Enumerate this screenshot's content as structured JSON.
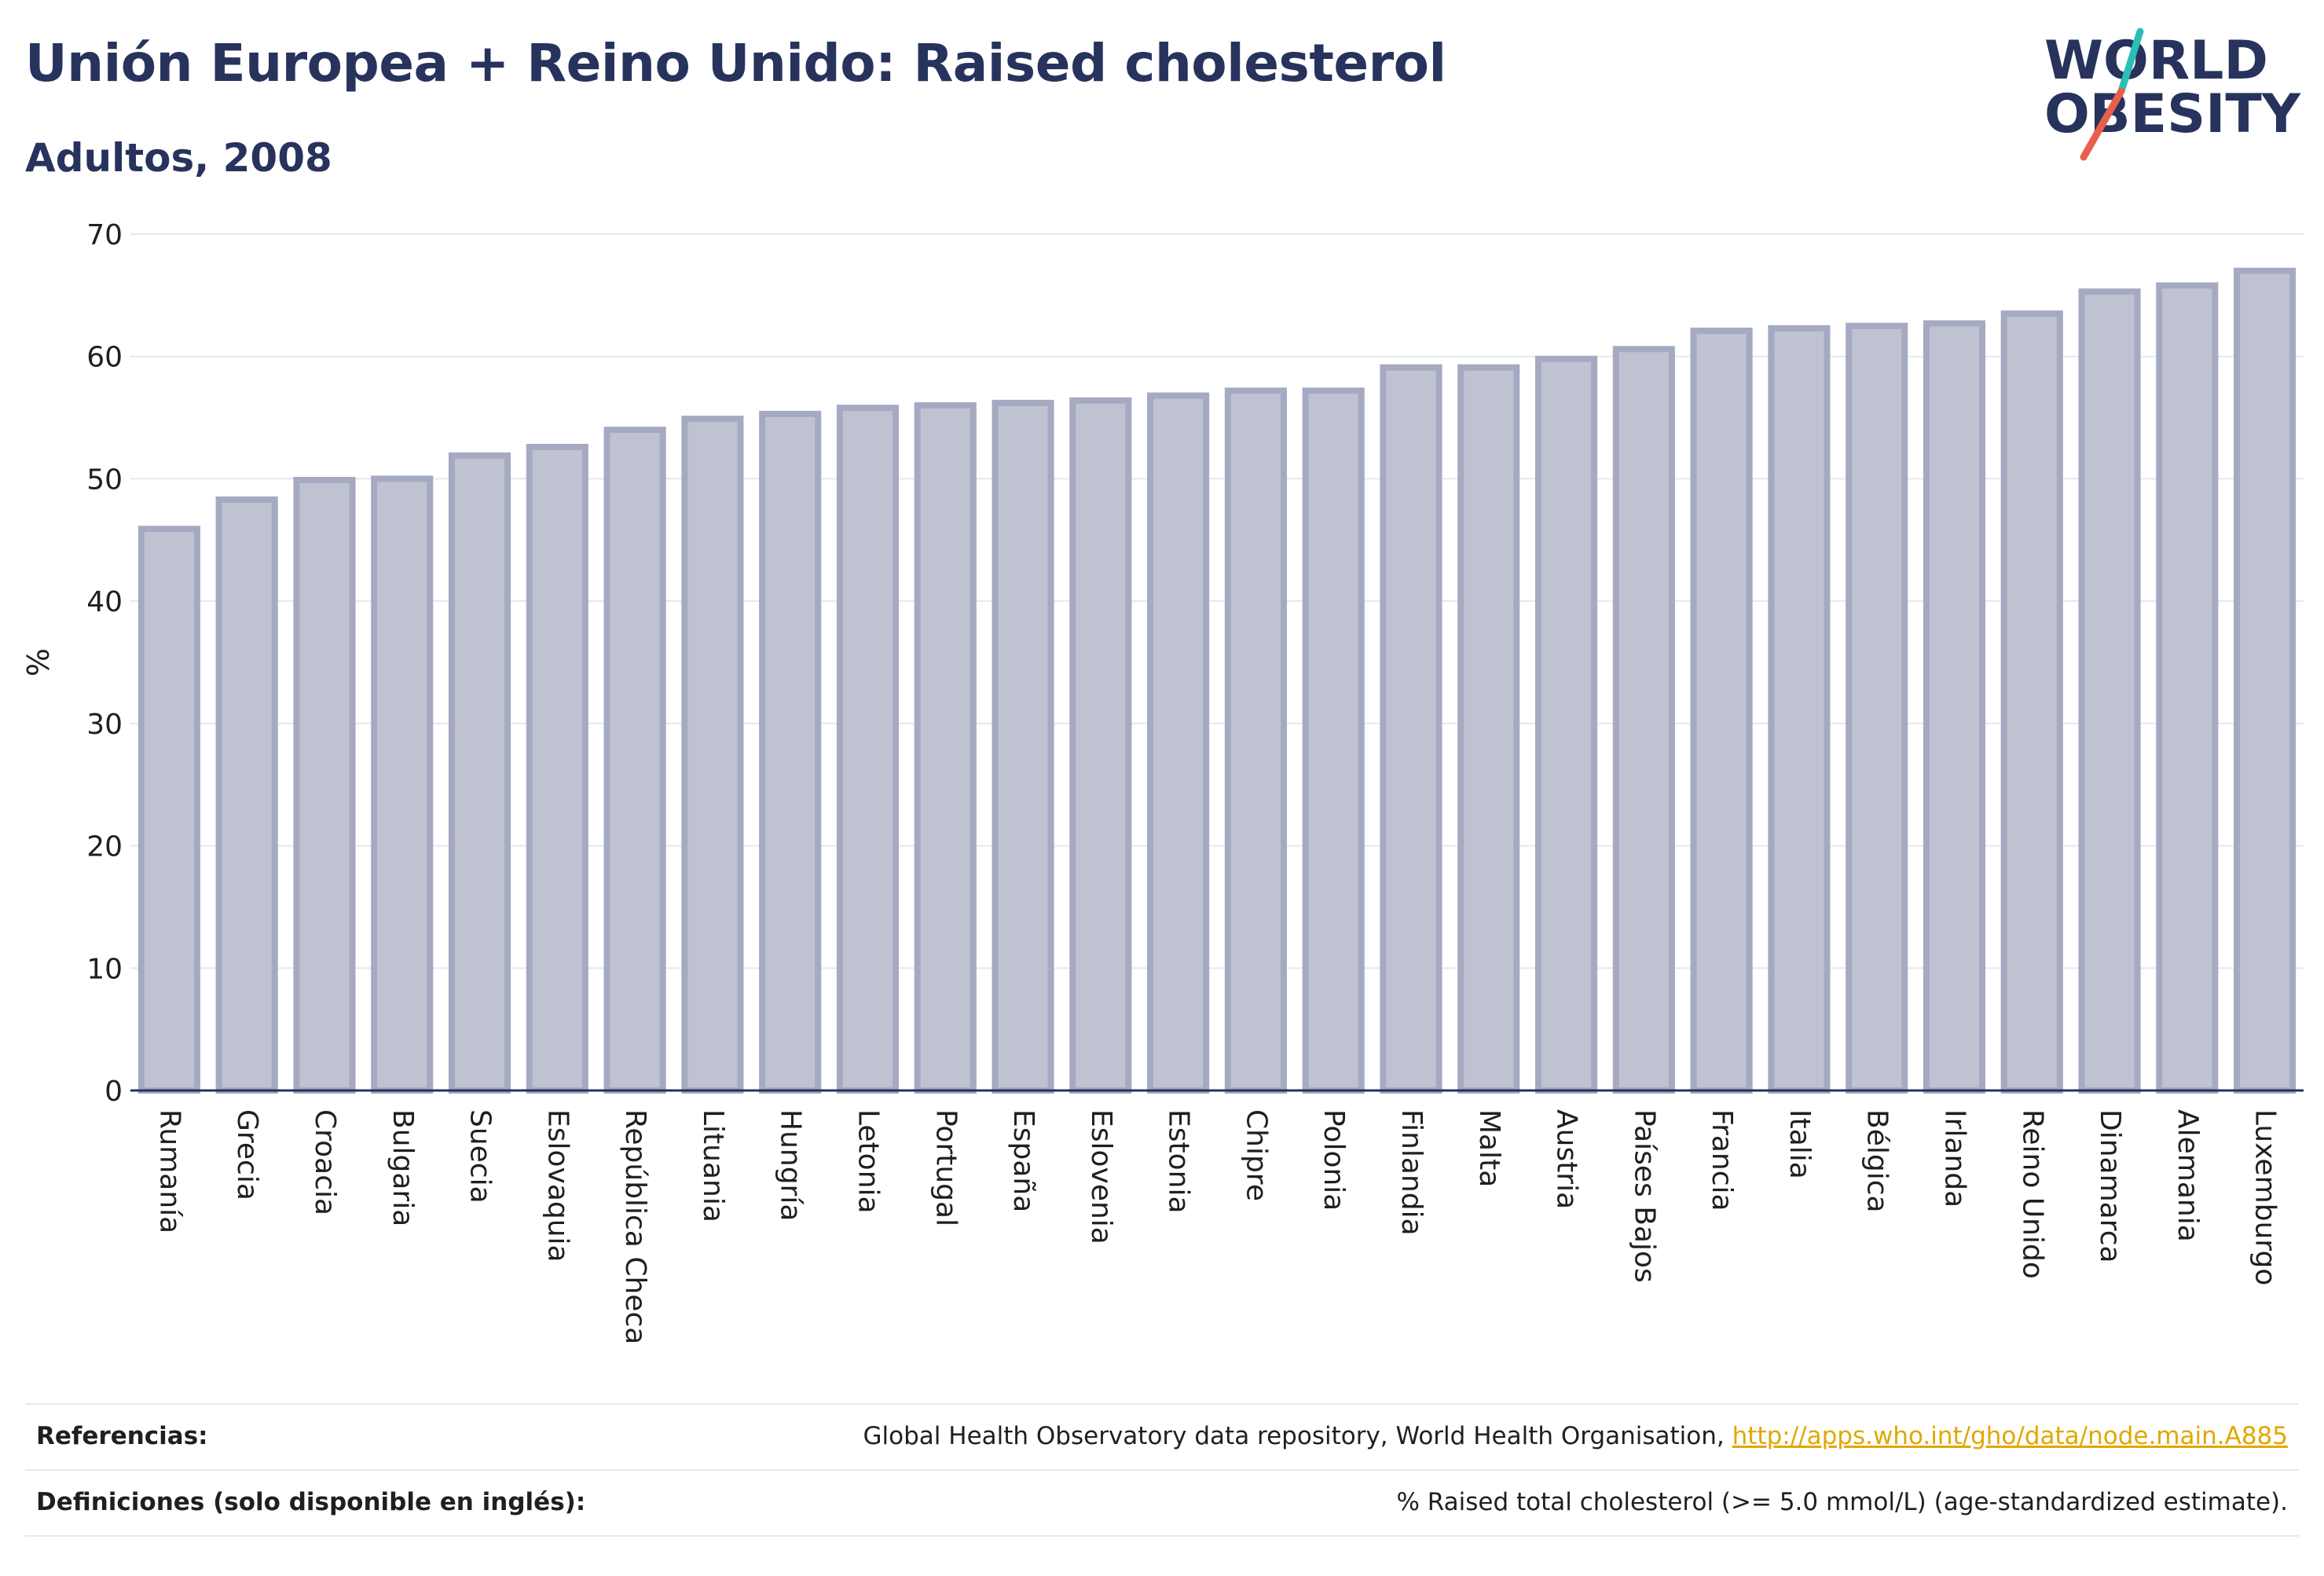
{
  "header": {
    "title": "Unión Europea + Reino Unido: Raised cholesterol",
    "subtitle": "Adultos, 2008"
  },
  "logo": {
    "line1": "WORLD",
    "line2": "OBESITY",
    "colors": {
      "text": "#27335c",
      "slash_top": "#2bbfb3",
      "slash_bottom": "#e8604c"
    }
  },
  "chart_data": {
    "type": "bar",
    "categories": [
      "Rumanía",
      "Grecia",
      "Croacia",
      "Bulgaria",
      "Suecia",
      "Eslovaquia",
      "República Checa",
      "Lituania",
      "Hungría",
      "Letonia",
      "Portugal",
      "España",
      "Eslovenia",
      "Estonia",
      "Chipre",
      "Polonia",
      "Finlandia",
      "Malta",
      "Austria",
      "Países Bajos",
      "Francia",
      "Italia",
      "Bélgica",
      "Irlanda",
      "Reino Unido",
      "Dinamarca",
      "Alemania",
      "Luxemburgo"
    ],
    "values": [
      45.9,
      48.3,
      49.9,
      50.0,
      51.9,
      52.6,
      54.0,
      54.9,
      55.3,
      55.8,
      56.0,
      56.2,
      56.4,
      56.8,
      57.2,
      57.2,
      59.1,
      59.1,
      59.8,
      60.6,
      62.1,
      62.3,
      62.5,
      62.7,
      63.5,
      65.3,
      65.8,
      67.0
    ],
    "ylabel": "%",
    "xlabel": "",
    "ylim": [
      0,
      70
    ],
    "yticks": [
      0,
      10,
      20,
      30,
      40,
      50,
      60,
      70
    ],
    "grid": true,
    "colors": {
      "bar_fill": "#bfc3d1",
      "bar_stroke": "#a5aac2",
      "axis": "#27335c"
    }
  },
  "info": {
    "references_label": "Referencias:",
    "references_text": "Global Health Observatory data repository, World Health Organisation, ",
    "references_link": "http://apps.who.int/gho/data/node.main.A885",
    "definitions_label": "Definiciones (solo disponible en inglés):",
    "definitions_text": "% Raised total cholesterol (>= 5.0 mmol/L) (age-standardized estimate)."
  }
}
